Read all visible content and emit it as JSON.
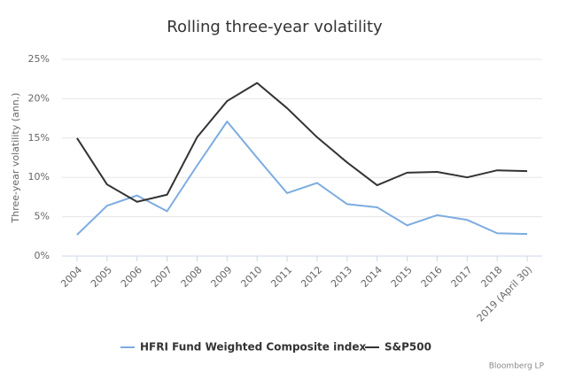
{
  "chart_data": {
    "type": "line",
    "title": "Rolling three-year volatility",
    "y_label": "Three-year volatility (ann.)",
    "source": "Bloomberg LP",
    "categories": [
      "2004",
      "2005",
      "2006",
      "2007",
      "2008",
      "2009",
      "2010",
      "2011",
      "2012",
      "2013",
      "2014",
      "2015",
      "2016",
      "2017",
      "2018",
      "2019 (April 30)"
    ],
    "series": [
      {
        "name": "HFRI Fund Weighted Composite index",
        "color": "#7cace0",
        "values": [
          2.7,
          6.4,
          7.7,
          5.7,
          11.5,
          17.1,
          12.5,
          8.0,
          9.3,
          6.6,
          6.2,
          3.9,
          5.2,
          4.6,
          2.9,
          2.8
        ]
      },
      {
        "name": "S&P500",
        "color": "#333333",
        "values": [
          15.0,
          9.1,
          6.9,
          7.8,
          15.1,
          19.7,
          22.0,
          18.8,
          15.1,
          11.9,
          9.0,
          10.6,
          10.7,
          10.0,
          10.9,
          10.8
        ]
      }
    ],
    "ylim": [
      0,
      25
    ],
    "yticks": [
      {
        "value": 0,
        "label": "0%"
      },
      {
        "value": 5,
        "label": "5%"
      },
      {
        "value": 10,
        "label": "10%"
      },
      {
        "value": 15,
        "label": "15%"
      },
      {
        "value": 20,
        "label": "20%"
      },
      {
        "value": 25,
        "label": "25%"
      }
    ],
    "grid": true
  }
}
